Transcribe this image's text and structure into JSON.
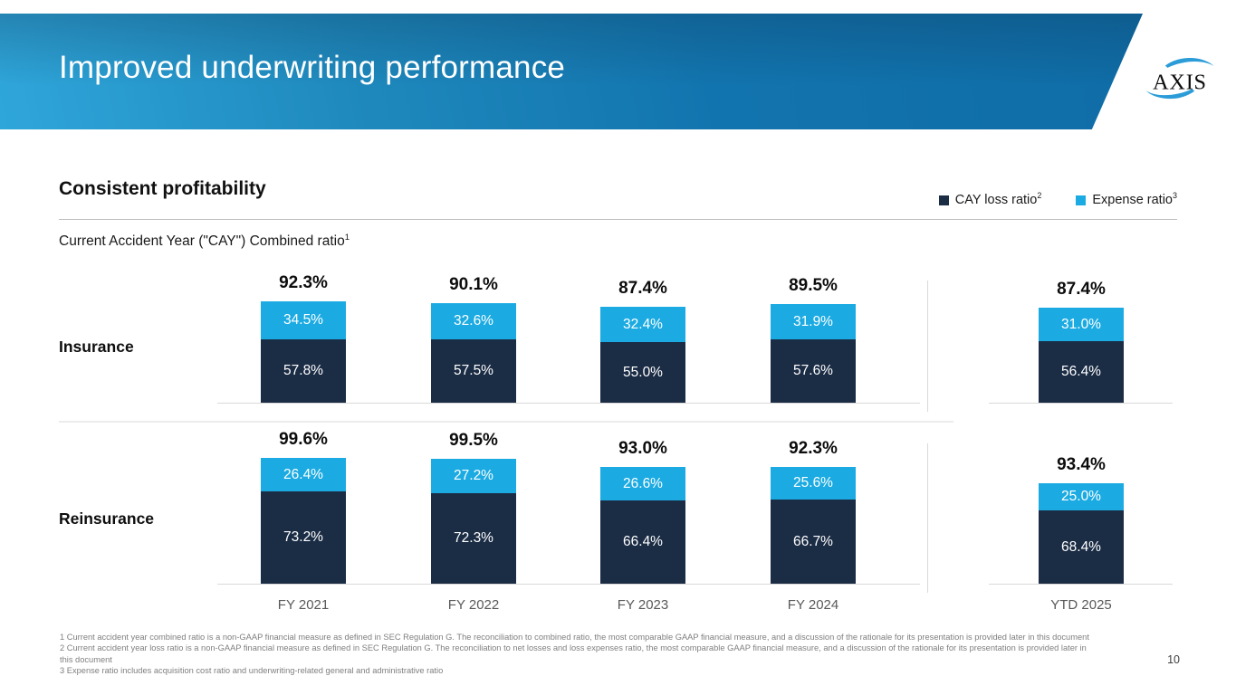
{
  "slide": {
    "title": "Improved underwriting performance",
    "page_number": "10"
  },
  "logo": {
    "text": "AXIS"
  },
  "section": {
    "heading": "Consistent profitability",
    "subtitle": "Current Accident Year (\"CAY\") Combined ratio",
    "subtitle_superscript": "1"
  },
  "legend": [
    {
      "label": "CAY loss ratio",
      "superscript": "2",
      "color": "#1b2c45"
    },
    {
      "label": "Expense ratio",
      "superscript": "3",
      "color": "#1babe2"
    }
  ],
  "chart_data": {
    "type": "bar",
    "stacked": true,
    "title": "Current Accident Year (\"CAY\") Combined ratio",
    "categories": [
      "FY 2021",
      "FY 2022",
      "FY 2023",
      "FY 2024",
      "YTD 2025"
    ],
    "legend_position": "top-right",
    "grid": false,
    "value_labels": "inside-segments",
    "totals_position": "above-bars",
    "colors": {
      "loss": "#1b2c45",
      "expense": "#1babe2"
    },
    "rows": [
      {
        "label": "Insurance",
        "totals": [
          "92.3%",
          "90.1%",
          "87.4%",
          "89.5%",
          "87.4%"
        ],
        "series": [
          {
            "name": "CAY loss ratio",
            "values": [
              57.8,
              57.5,
              55.0,
              57.6,
              56.4
            ]
          },
          {
            "name": "Expense ratio",
            "values": [
              34.5,
              32.6,
              32.4,
              31.9,
              31.0
            ]
          }
        ]
      },
      {
        "label": "Reinsurance",
        "totals": [
          "99.6%",
          "99.5%",
          "93.0%",
          "92.3%",
          "93.4%"
        ],
        "series": [
          {
            "name": "CAY loss ratio",
            "values": [
              73.2,
              72.3,
              66.4,
              66.7,
              68.4
            ]
          },
          {
            "name": "Expense ratio",
            "values": [
              26.4,
              27.2,
              26.6,
              25.6,
              25.0
            ]
          }
        ]
      }
    ]
  },
  "footnotes": [
    {
      "lines": [
        "1 Current accident year combined ratio is a non-GAAP financial measure as defined in SEC Regulation G. The reconciliation to combined ratio, the most comparable GAAP financial measure, and a discussion of the rationale for its presentation is provided later in this document"
      ]
    },
    {
      "lines": [
        "2 Current accident year loss ratio is a non-GAAP financial measure as defined in SEC Regulation G. The reconciliation to net losses and loss expenses ratio, the most comparable GAAP financial measure, and a discussion of the rationale for its presentation is provided later in",
        "this document"
      ]
    },
    {
      "lines": [
        "3 Expense ratio includes acquisition cost ratio and underwriting-related general and administrative ratio"
      ]
    }
  ]
}
